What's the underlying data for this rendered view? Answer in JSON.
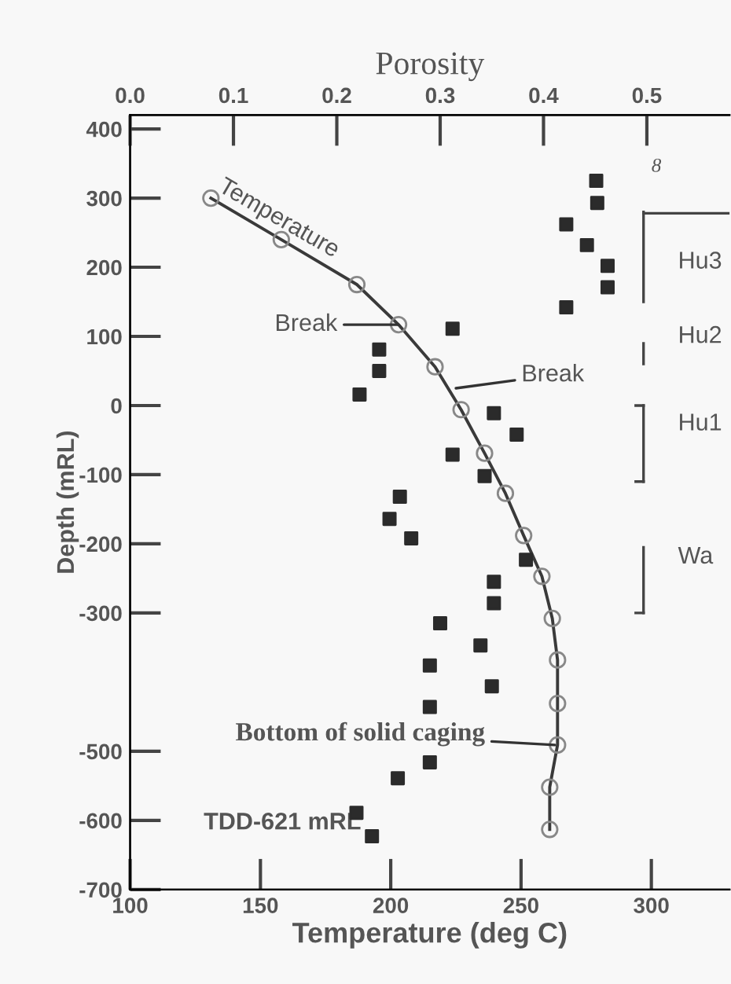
{
  "chart_data": {
    "type": "line",
    "xlabel": "Temperature (deg C)",
    "ylabel": "Depth (mRL)",
    "x2label": "Porosity",
    "xlim": [
      100,
      330
    ],
    "xticks": [
      100,
      150,
      200,
      250,
      300
    ],
    "x2lim": [
      0,
      0.58
    ],
    "x2ticks": [
      {
        "value": 0,
        "label": "0.0"
      },
      0.1,
      0.2,
      0.3,
      0.4,
      0.5
    ],
    "ylim": [
      -700,
      420
    ],
    "yticks": [
      400,
      300,
      200,
      100,
      0,
      -100,
      -200,
      -300,
      -500,
      -600,
      -700
    ],
    "grid": false,
    "series": [
      {
        "name": "Temperature",
        "color": "#3a3a3a",
        "marker": "circle",
        "line_style": "solid",
        "x": [
          131,
          158,
          187,
          203,
          217,
          227,
          236,
          244,
          251,
          258,
          262,
          264,
          264,
          264,
          261,
          261
        ],
        "values": [
          300,
          240,
          175,
          117,
          56,
          -6,
          -69,
          -127,
          -188,
          -247,
          -308,
          -368,
          -431,
          -491,
          -552,
          -613
        ]
      },
      {
        "type": "scatter",
        "axis": "x2",
        "color": "#2b2b2b",
        "marker": "square",
        "x": [
          0.451,
          0.452,
          0.422,
          0.442,
          0.462,
          0.462,
          0.422,
          0.312,
          0.241,
          0.241,
          0.222,
          0.352,
          0.374,
          0.312,
          0.343,
          0.261,
          0.251,
          0.272,
          0.383,
          0.352,
          0.352,
          0.3,
          0.339,
          0.29,
          0.35,
          0.29,
          0.29,
          0.259,
          0.219,
          0.234
        ],
        "values": [
          325,
          293,
          262,
          232,
          202,
          171,
          142,
          111,
          81,
          50,
          16,
          -11,
          -42,
          -71,
          -102,
          -132,
          -164,
          -192,
          -223,
          -255,
          -286,
          -315,
          -347,
          -376,
          -406,
          -436,
          -516,
          -539,
          -589,
          -623
        ]
      }
    ],
    "annotations": [
      {
        "text": "Break",
        "x": 203,
        "y": 117
      },
      {
        "text": "Break",
        "x": 225,
        "y": 25
      },
      {
        "text": "Bottom of solid caging",
        "x": 263,
        "y": -491
      },
      {
        "text": "TDD-621 mRL",
        "x": 192,
        "y": -623
      },
      "8",
      "Hu3",
      "Hu2",
      "Hu1",
      "Wa"
    ]
  }
}
